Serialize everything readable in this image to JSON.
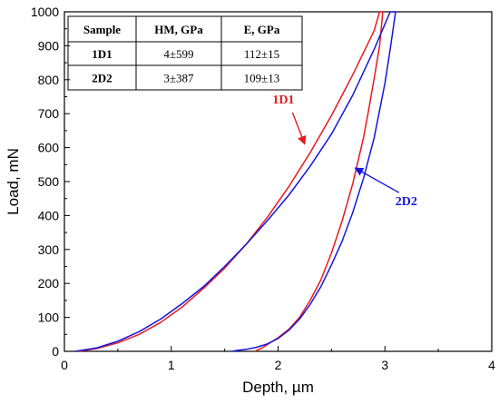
{
  "chart_data": {
    "type": "line",
    "xlabel": "Depth, µm",
    "ylabel": "Load, mN",
    "xlim": [
      0,
      4
    ],
    "ylim": [
      0,
      1000
    ],
    "xticks": [
      0,
      1,
      2,
      3,
      4
    ],
    "yticks": [
      0,
      100,
      200,
      300,
      400,
      500,
      600,
      700,
      800,
      900,
      1000
    ],
    "grid": false,
    "series": [
      {
        "name": "1D1",
        "color": "#e8191f",
        "loading": {
          "x": [
            0.13,
            0.3,
            0.5,
            0.7,
            0.9,
            1.1,
            1.3,
            1.5,
            1.7,
            1.9,
            2.1,
            2.3,
            2.5,
            2.7,
            2.9,
            2.95
          ],
          "y": [
            0,
            8,
            25,
            50,
            85,
            130,
            185,
            245,
            315,
            395,
            485,
            585,
            695,
            815,
            945,
            1000
          ]
        },
        "unloading": {
          "x": [
            2.98,
            2.95,
            2.9,
            2.85,
            2.8,
            2.7,
            2.6,
            2.5,
            2.4,
            2.3,
            2.2,
            2.1,
            2.0,
            1.9,
            1.85,
            1.8,
            1.78
          ],
          "y": [
            1000,
            900,
            805,
            715,
            630,
            495,
            385,
            290,
            210,
            150,
            100,
            65,
            40,
            20,
            10,
            3,
            0
          ]
        }
      },
      {
        "name": "2D2",
        "color": "#1515e0",
        "loading": {
          "x": [
            0.1,
            0.3,
            0.5,
            0.7,
            0.9,
            1.1,
            1.3,
            1.5,
            1.7,
            1.9,
            2.1,
            2.3,
            2.5,
            2.7,
            2.9,
            3.05
          ],
          "y": [
            0,
            10,
            30,
            58,
            95,
            140,
            190,
            250,
            315,
            385,
            460,
            545,
            640,
            755,
            890,
            1000
          ]
        },
        "unloading": {
          "x": [
            3.1,
            3.05,
            3.0,
            2.9,
            2.8,
            2.7,
            2.6,
            2.5,
            2.4,
            2.3,
            2.2,
            2.1,
            2.0,
            1.9,
            1.8,
            1.7,
            1.6,
            1.57
          ],
          "y": [
            1000,
            890,
            790,
            630,
            510,
            410,
            325,
            255,
            190,
            138,
            95,
            62,
            38,
            22,
            12,
            6,
            2,
            0
          ]
        }
      }
    ],
    "annotations": [
      {
        "text": "1D1",
        "color": "#e8191f",
        "text_pos": [
          2.05,
          730
        ],
        "arrow_to": [
          2.25,
          610
        ]
      },
      {
        "text": "2D2",
        "color": "#1515e0",
        "text_pos": [
          3.2,
          430
        ],
        "arrow_to": [
          2.72,
          540
        ]
      }
    ],
    "table": {
      "headers": [
        "Sample",
        "HM, GPa",
        "E, GPa"
      ],
      "rows": [
        [
          "1D1",
          "4±599",
          "112±15"
        ],
        [
          "2D2",
          "3±387",
          "109±13"
        ]
      ],
      "placement": "top-left"
    }
  }
}
